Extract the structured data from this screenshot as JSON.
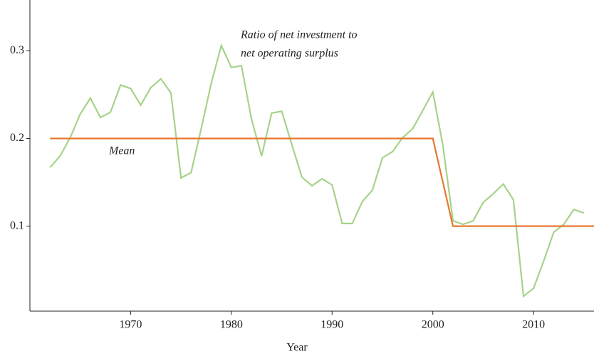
{
  "chart_data": {
    "type": "line",
    "x_label": "Year",
    "annotations": {
      "series_label": [
        "Ratio of net investment to",
        "net operating surplus"
      ],
      "mean_label": "Mean"
    },
    "xlim": [
      1960,
      2016
    ],
    "xticks": [
      1970,
      1980,
      1990,
      2000,
      2010
    ],
    "ylim": [
      0.003,
      0.358
    ],
    "yticks": [
      0.1,
      0.2,
      0.3
    ],
    "grid": false,
    "series": [
      {
        "color": "#a6d38a",
        "x": [
          1962,
          1963,
          1964,
          1965,
          1966,
          1967,
          1968,
          1969,
          1970,
          1971,
          1972,
          1973,
          1974,
          1975,
          1976,
          1977,
          1978,
          1979,
          1980,
          1981,
          1982,
          1983,
          1984,
          1985,
          1986,
          1987,
          1988,
          1989,
          1990,
          1991,
          1992,
          1993,
          1994,
          1995,
          1996,
          1997,
          1998,
          1999,
          2000,
          2001,
          2002,
          2003,
          2004,
          2005,
          2006,
          2007,
          2008,
          2009,
          2010,
          2011,
          2012,
          2013,
          2014,
          2015
        ],
        "values": [
          0.167,
          0.18,
          0.201,
          0.228,
          0.246,
          0.224,
          0.23,
          0.261,
          0.257,
          0.238,
          0.258,
          0.268,
          0.252,
          0.155,
          0.161,
          0.211,
          0.263,
          0.306,
          0.281,
          0.283,
          0.222,
          0.18,
          0.229,
          0.231,
          0.193,
          0.156,
          0.146,
          0.154,
          0.147,
          0.103,
          0.103,
          0.128,
          0.141,
          0.178,
          0.185,
          0.201,
          0.211,
          0.232,
          0.253,
          0.192,
          0.106,
          0.102,
          0.106,
          0.127,
          0.137,
          0.148,
          0.13,
          0.02,
          0.029,
          0.06,
          0.093,
          0.102,
          0.119,
          0.115
        ]
      },
      {
        "color": "#e8772e",
        "x": [
          1962,
          2000,
          2002,
          2016
        ],
        "values": [
          0.2,
          0.2,
          0.1,
          0.1
        ]
      }
    ]
  }
}
